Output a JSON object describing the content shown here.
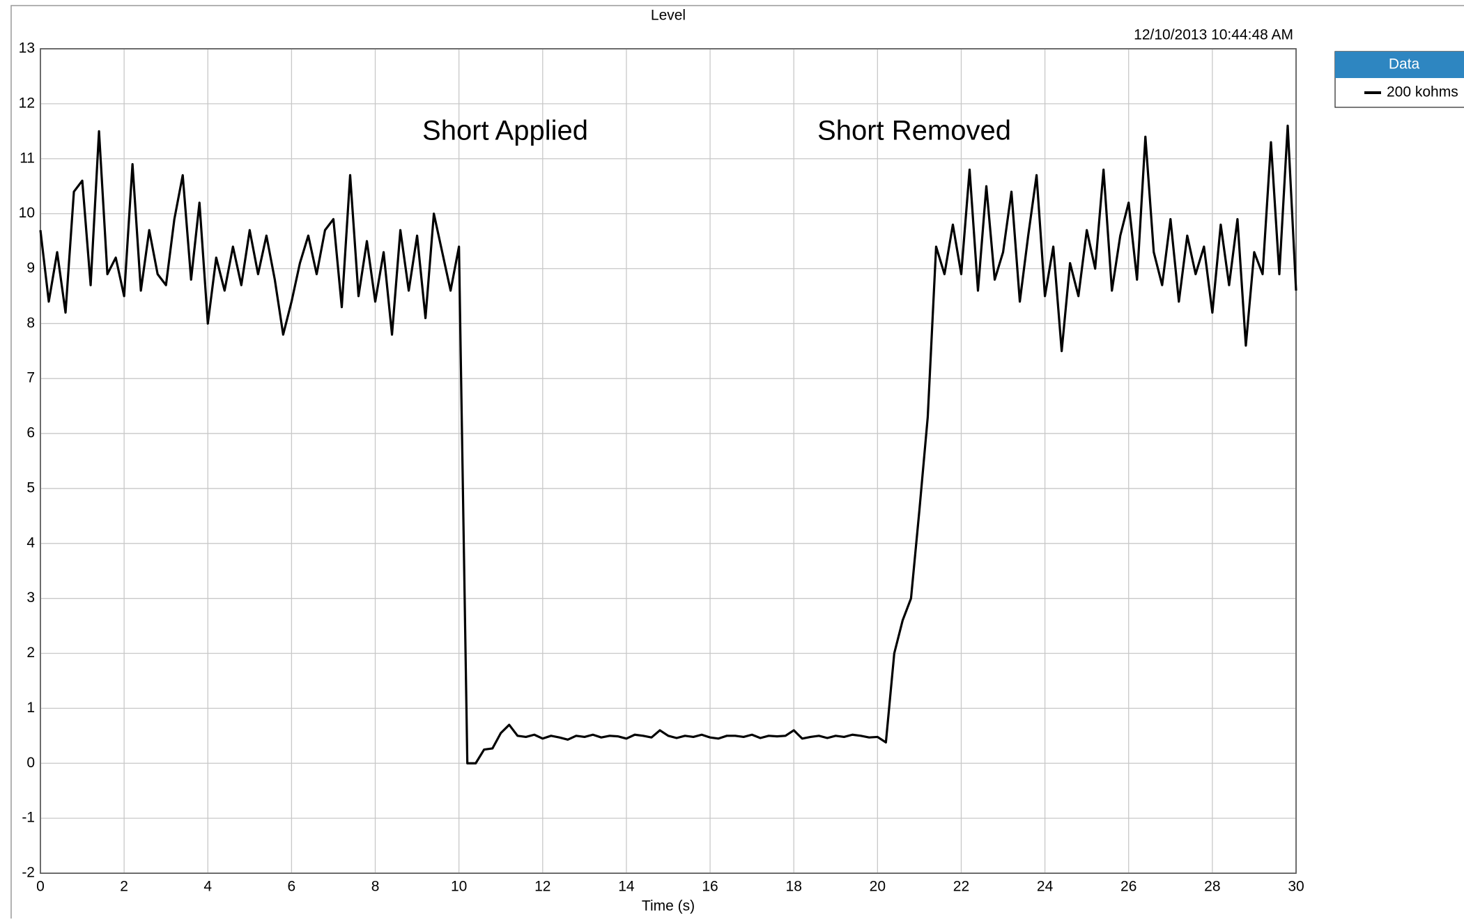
{
  "chart_data": {
    "type": "line",
    "title": "Level",
    "timestamp": "12/10/2013 10:44:48 AM",
    "x_label": "Time (s)",
    "legend_title": "Data",
    "annotations": [
      "Short Applied",
      "Short Removed"
    ],
    "xlim": [
      0,
      30
    ],
    "xticks": [
      0,
      2,
      4,
      6,
      8,
      10,
      12,
      14,
      16,
      18,
      20,
      22,
      24,
      26,
      28,
      30
    ],
    "ylim": [
      -2,
      13
    ],
    "yticks": [
      -2,
      -1,
      0,
      1,
      2,
      3,
      4,
      5,
      6,
      7,
      8,
      9,
      10,
      11,
      12,
      13
    ],
    "grid": true,
    "x": [
      0,
      0.2,
      0.4,
      0.6,
      0.8,
      1,
      1.2,
      1.4,
      1.6,
      1.8,
      2,
      2.2,
      2.4,
      2.6,
      2.8,
      3,
      3.2,
      3.4,
      3.6,
      3.8,
      4,
      4.2,
      4.4,
      4.6,
      4.8,
      5,
      5.2,
      5.4,
      5.6,
      5.8,
      6,
      6.2,
      6.4,
      6.6,
      6.8,
      7,
      7.2,
      7.4,
      7.6,
      7.8,
      8,
      8.2,
      8.4,
      8.6,
      8.8,
      9,
      9.2,
      9.4,
      9.6,
      9.8,
      10,
      10.2,
      10.4,
      10.6,
      10.8,
      11,
      11.2,
      11.4,
      11.6,
      11.8,
      12,
      12.2,
      12.4,
      12.6,
      12.8,
      13,
      13.2,
      13.4,
      13.6,
      13.8,
      14,
      14.2,
      14.4,
      14.6,
      14.8,
      15,
      15.2,
      15.4,
      15.6,
      15.8,
      16,
      16.2,
      16.4,
      16.6,
      16.8,
      17,
      17.2,
      17.4,
      17.6,
      17.8,
      18,
      18.2,
      18.4,
      18.6,
      18.8,
      19,
      19.2,
      19.4,
      19.6,
      19.8,
      20,
      20.2,
      20.4,
      20.6,
      20.8,
      21,
      21.2,
      21.4,
      21.6,
      21.8,
      22,
      22.2,
      22.4,
      22.6,
      22.8,
      23,
      23.2,
      23.4,
      23.6,
      23.8,
      24,
      24.2,
      24.4,
      24.6,
      24.8,
      25,
      25.2,
      25.4,
      25.6,
      25.8,
      26,
      26.2,
      26.4,
      26.6,
      26.8,
      27,
      27.2,
      27.4,
      27.6,
      27.8,
      28,
      28.2,
      28.4,
      28.6,
      28.8,
      29,
      29.2,
      29.4,
      29.6,
      29.8,
      30
    ],
    "series": [
      {
        "name": "200 kohms",
        "color": "#000000",
        "values": [
          9.7,
          8.4,
          9.3,
          8.2,
          10.4,
          10.6,
          8.7,
          11.5,
          8.9,
          9.2,
          8.5,
          10.9,
          8.6,
          9.7,
          8.9,
          8.7,
          9.9,
          10.7,
          8.8,
          10.2,
          8.0,
          9.2,
          8.6,
          9.4,
          8.7,
          9.7,
          8.9,
          9.6,
          8.8,
          7.8,
          8.4,
          9.1,
          9.6,
          8.9,
          9.7,
          9.9,
          8.3,
          10.7,
          8.5,
          9.5,
          8.4,
          9.3,
          7.8,
          9.7,
          8.6,
          9.6,
          8.1,
          10.0,
          9.3,
          8.6,
          9.4,
          0.0,
          0.0,
          0.25,
          0.27,
          0.55,
          0.7,
          0.5,
          0.48,
          0.52,
          0.45,
          0.5,
          0.47,
          0.43,
          0.5,
          0.48,
          0.52,
          0.47,
          0.5,
          0.49,
          0.45,
          0.52,
          0.5,
          0.47,
          0.6,
          0.5,
          0.46,
          0.5,
          0.48,
          0.52,
          0.47,
          0.45,
          0.5,
          0.5,
          0.48,
          0.52,
          0.46,
          0.5,
          0.49,
          0.5,
          0.6,
          0.45,
          0.48,
          0.5,
          0.46,
          0.5,
          0.48,
          0.52,
          0.5,
          0.47,
          0.48,
          0.38,
          2.0,
          2.6,
          3.0,
          4.6,
          6.3,
          9.4,
          8.9,
          9.8,
          8.9,
          10.8,
          8.6,
          10.5,
          8.8,
          9.3,
          10.4,
          8.4,
          9.6,
          10.7,
          8.5,
          9.4,
          7.5,
          9.1,
          8.5,
          9.7,
          9.0,
          10.8,
          8.6,
          9.6,
          10.2,
          8.8,
          11.4,
          9.3,
          8.7,
          9.9,
          8.4,
          9.6,
          8.9,
          9.4,
          8.2,
          9.8,
          8.7,
          9.9,
          7.6,
          9.3,
          8.9,
          11.3,
          8.9,
          11.6,
          8.6
        ]
      }
    ]
  }
}
